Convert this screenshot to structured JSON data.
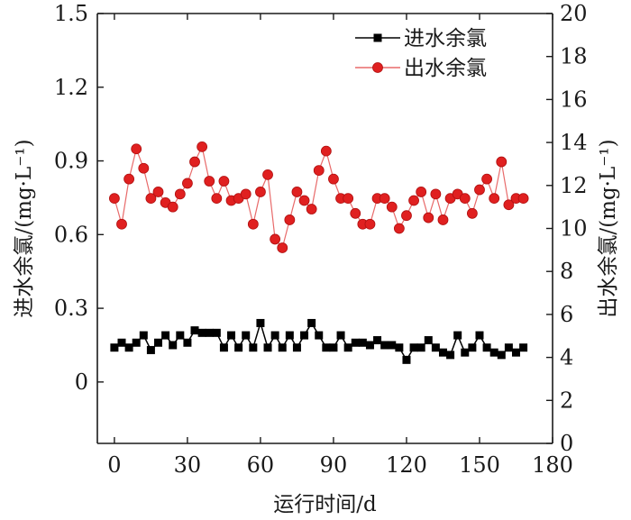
{
  "chart_data": {
    "type": "line",
    "xlabel": "运行时间/d",
    "ylabel_left": "进水余氯/(mg·L⁻¹)",
    "ylabel_right": "出水余氯/(mg·L⁻¹)",
    "xlim": [
      -7,
      180
    ],
    "ylim_left": [
      -0.25,
      1.5
    ],
    "ylim_right": [
      0,
      20
    ],
    "x_ticks": [
      0,
      30,
      60,
      90,
      120,
      150,
      180
    ],
    "y_left_ticks": [
      0,
      0.3,
      0.6,
      0.9,
      1.2,
      1.5
    ],
    "y_left_tick_labels": [
      "0",
      "0.3",
      "0.6",
      "0.9",
      "1.2",
      "1.5"
    ],
    "y_right_ticks": [
      0,
      2,
      4,
      6,
      8,
      10,
      12,
      14,
      16,
      18,
      20
    ],
    "grid": false,
    "legend_position": "top-right",
    "series": [
      {
        "name": "进水余氯",
        "axis": "left",
        "marker": "square",
        "color": "#000000",
        "x": [
          0,
          3,
          6,
          9,
          12,
          15,
          18,
          21,
          24,
          27,
          30,
          33,
          36,
          39,
          42,
          45,
          48,
          51,
          54,
          57,
          60,
          63,
          66,
          69,
          72,
          75,
          78,
          81,
          84,
          87,
          90,
          93,
          96,
          99,
          102,
          105,
          108,
          111,
          114,
          117,
          120,
          123,
          126,
          129,
          132,
          135,
          138,
          141,
          144,
          147,
          150,
          153,
          156,
          159,
          162,
          165,
          168
        ],
        "values": [
          0.14,
          0.16,
          0.14,
          0.16,
          0.19,
          0.13,
          0.16,
          0.19,
          0.15,
          0.19,
          0.16,
          0.21,
          0.2,
          0.2,
          0.2,
          0.14,
          0.19,
          0.14,
          0.19,
          0.14,
          0.24,
          0.14,
          0.19,
          0.14,
          0.19,
          0.14,
          0.19,
          0.24,
          0.19,
          0.14,
          0.14,
          0.19,
          0.14,
          0.16,
          0.16,
          0.15,
          0.17,
          0.15,
          0.15,
          0.14,
          0.09,
          0.14,
          0.14,
          0.17,
          0.14,
          0.12,
          0.11,
          0.19,
          0.12,
          0.14,
          0.19,
          0.14,
          0.12,
          0.11,
          0.14,
          0.12,
          0.14
        ]
      },
      {
        "name": "出水余氯",
        "axis": "right",
        "marker": "circle",
        "color": "#e02020",
        "line_color": "#e86a6a",
        "x": [
          0,
          3,
          6,
          9,
          12,
          15,
          18,
          21,
          24,
          27,
          30,
          33,
          36,
          39,
          42,
          45,
          48,
          51,
          54,
          57,
          60,
          63,
          66,
          69,
          72,
          75,
          78,
          81,
          84,
          87,
          90,
          93,
          96,
          99,
          102,
          105,
          108,
          111,
          114,
          117,
          120,
          123,
          126,
          129,
          132,
          135,
          138,
          141,
          144,
          147,
          150,
          153,
          156,
          159,
          162,
          165,
          168
        ],
        "values": [
          11.4,
          10.2,
          12.3,
          13.7,
          12.8,
          11.4,
          11.7,
          11.2,
          11.0,
          11.6,
          12.1,
          13.1,
          13.8,
          12.2,
          11.4,
          12.2,
          11.3,
          11.4,
          11.6,
          10.2,
          11.7,
          12.5,
          9.5,
          9.1,
          10.4,
          11.7,
          11.3,
          10.9,
          12.7,
          13.6,
          12.3,
          11.4,
          11.4,
          10.7,
          10.2,
          10.2,
          11.4,
          11.4,
          11.0,
          10.0,
          10.6,
          11.3,
          11.7,
          10.5,
          11.6,
          10.4,
          11.4,
          11.6,
          11.4,
          10.7,
          11.8,
          12.3,
          11.4,
          13.1,
          11.1,
          11.4,
          11.4
        ]
      }
    ]
  }
}
